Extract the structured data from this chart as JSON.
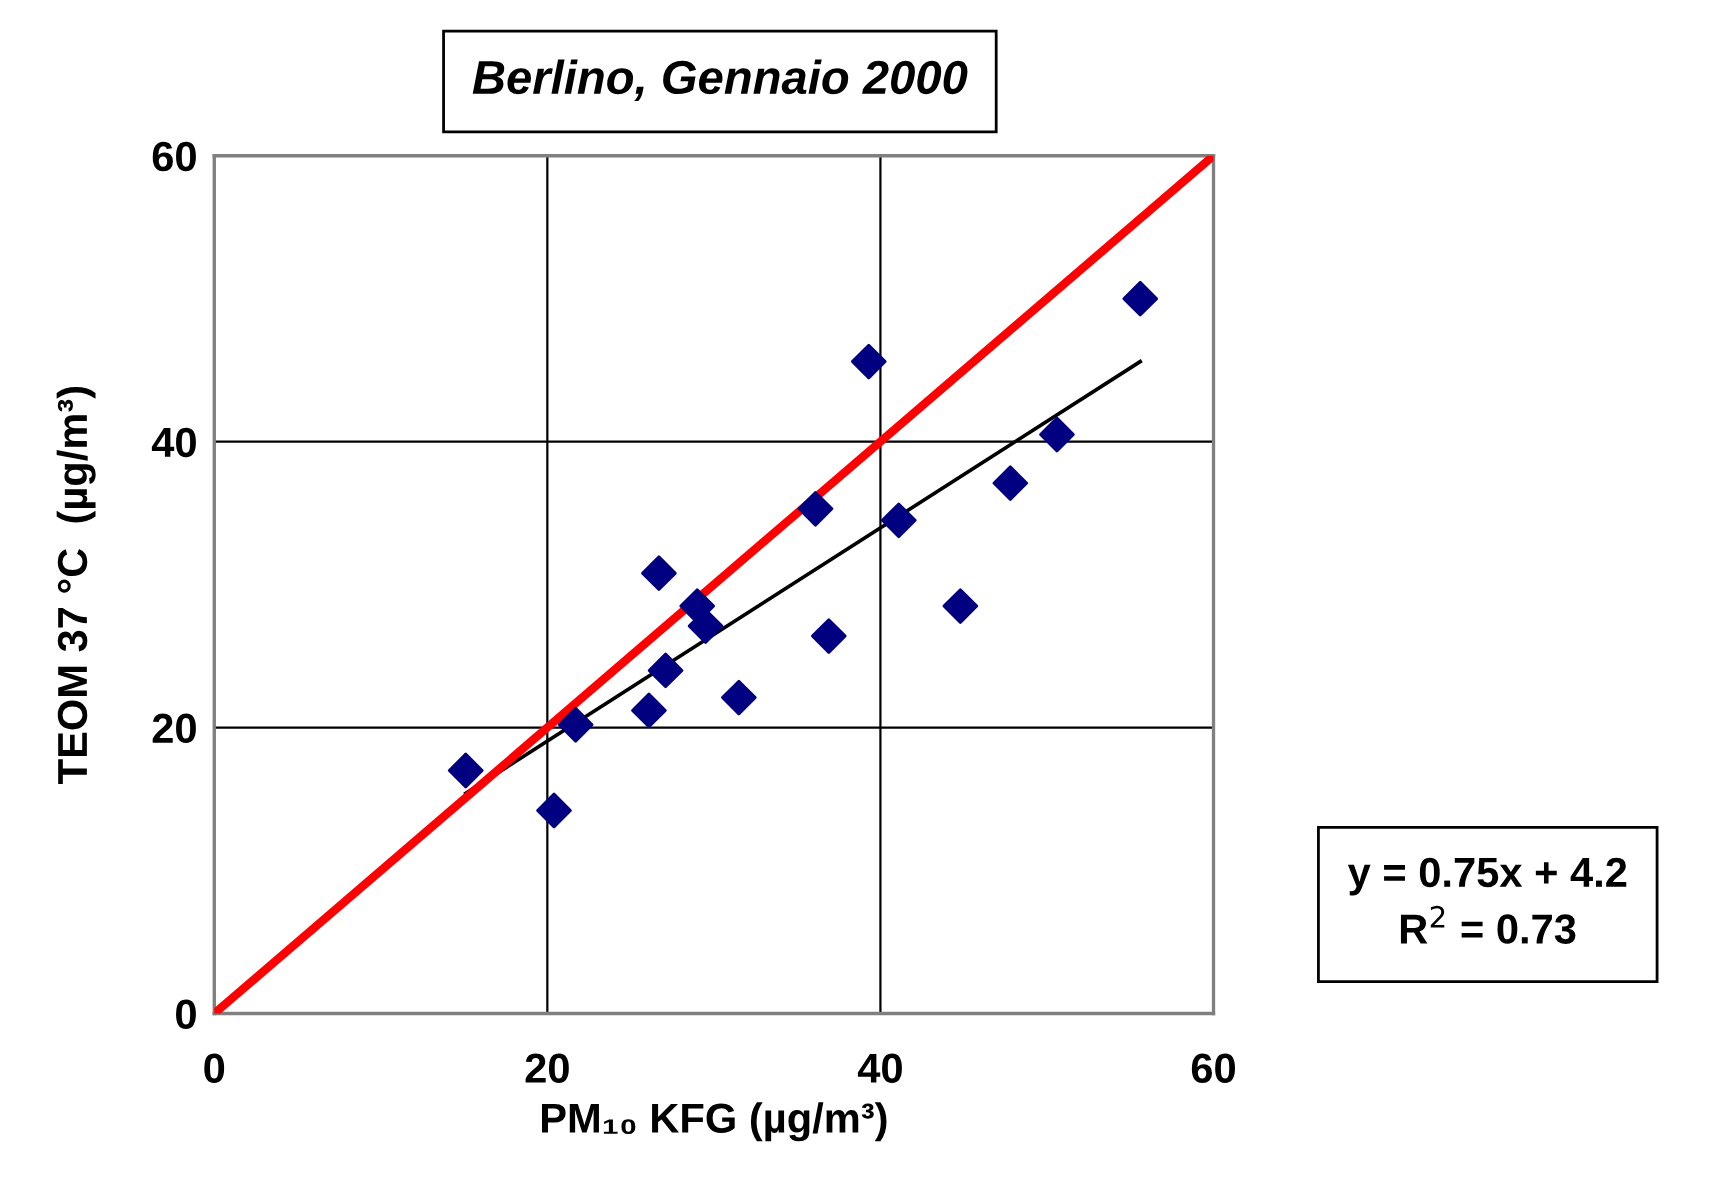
{
  "chart_data": {
    "type": "scatter",
    "title": "Berlino, Gennaio 2000",
    "xlabel": "PM₁₀ KFG (µg/m³)",
    "ylabel": "TEOM 37 °C  (µg/m³)",
    "xlim": [
      0,
      60
    ],
    "ylim": [
      0,
      60
    ],
    "xticks": [
      0,
      20,
      40,
      60
    ],
    "yticks": [
      0,
      20,
      40,
      60
    ],
    "grid": true,
    "series": [
      {
        "color": "#000080",
        "marker": "diamond",
        "x": [
          15.1,
          20.4,
          21.7,
          26.1,
          26.7,
          27.1,
          29.0,
          29.5,
          31.5,
          36.1,
          36.9,
          39.3,
          41.1,
          44.8,
          47.8,
          50.6,
          55.6
        ],
        "values": [
          17.0,
          14.2,
          20.2,
          21.2,
          30.8,
          24.0,
          28.5,
          27.1,
          22.1,
          35.3,
          26.4,
          45.6,
          34.5,
          28.5,
          37.1,
          40.5,
          50.0
        ]
      },
      {
        "type": "line",
        "color": "#000000",
        "marker": "none",
        "x": [
          15.1,
          55.6
        ],
        "values": [
          15.4,
          45.6
        ]
      },
      {
        "type": "line",
        "color": "#ff0000",
        "marker": "none",
        "x": [
          0,
          60
        ],
        "values": [
          0,
          60
        ]
      }
    ],
    "annotations": [
      "y = 0.75x + 4.2\nR$^{2}$ = 0.73"
    ]
  }
}
